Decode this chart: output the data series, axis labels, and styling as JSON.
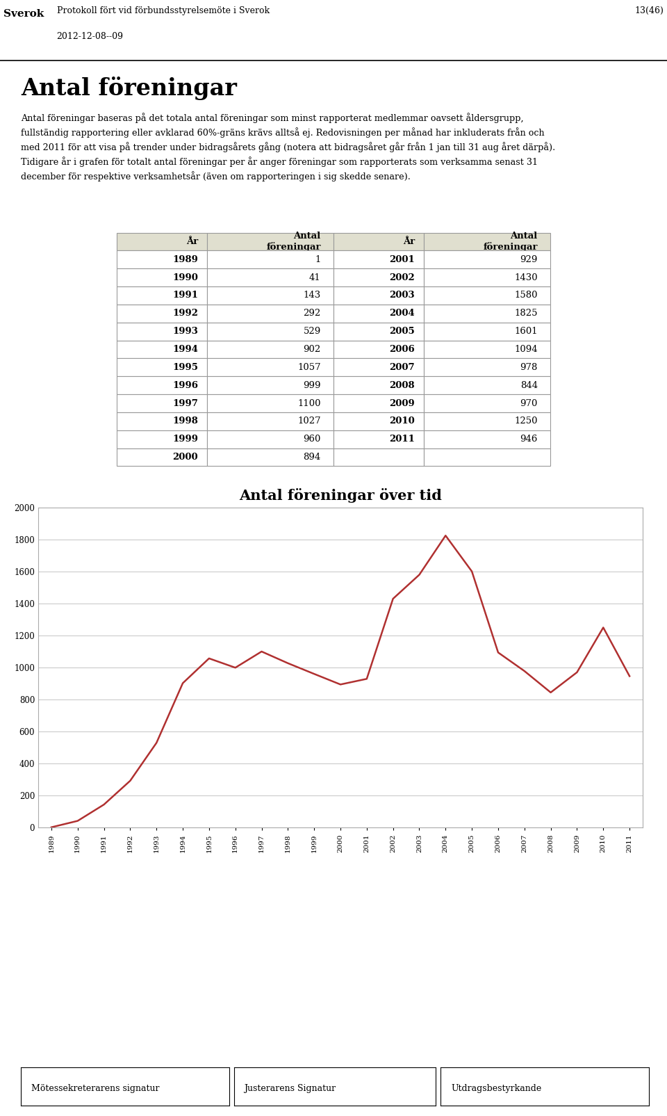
{
  "page_header": "Protokoll fört vid förbundsstyrelsemöte i Sverok",
  "page_number": "13(46)",
  "page_date": "2012-12-08--09",
  "section_title": "Antal föreningar",
  "body_text_line1": "Antal föreningar baseras på det totala antal föreningar som minst rapporterat medlemmar oavsett åldersgrupp,",
  "body_text_line2": "fullständig rapportering eller avklarad 60%-gräns krävs alltså ej. Redovisningen per månad har inkluderats från och",
  "body_text_line3": "med 2011 för att visa på trender under bidragsårets gång (notera att bidragsåret går från 1 jan till 31 aug året därpå).",
  "body_text_line4": "Tidigare år i grafen för totalt antal föreningar per år anger föreningar som rapporterats som verksamma senast 31",
  "body_text_line5": "december för respektive verksamhetsår (även om rapporteringen i sig skedde senare).",
  "table_years_left": [
    1989,
    1990,
    1991,
    1992,
    1993,
    1994,
    1995,
    1996,
    1997,
    1998,
    1999,
    2000
  ],
  "table_values_left": [
    1,
    41,
    143,
    292,
    529,
    902,
    1057,
    999,
    1100,
    1027,
    960,
    894
  ],
  "table_years_right": [
    2001,
    2002,
    2003,
    2004,
    2005,
    2006,
    2007,
    2008,
    2009,
    2010,
    2011,
    ""
  ],
  "table_values_right": [
    929,
    1430,
    1580,
    1825,
    1601,
    1094,
    978,
    844,
    970,
    1250,
    946,
    ""
  ],
  "chart_title": "Antal föreningar över tid",
  "chart_years": [
    1989,
    1990,
    1991,
    1992,
    1993,
    1994,
    1995,
    1996,
    1997,
    1998,
    1999,
    2000,
    2001,
    2002,
    2003,
    2004,
    2005,
    2006,
    2007,
    2008,
    2009,
    2010,
    2011
  ],
  "chart_values": [
    1,
    41,
    143,
    292,
    529,
    902,
    1057,
    999,
    1100,
    1027,
    960,
    894,
    929,
    1430,
    1580,
    1825,
    1601,
    1094,
    978,
    844,
    970,
    1250,
    946
  ],
  "chart_line_color": "#B03030",
  "chart_bg_color": "#FFFFFF",
  "chart_grid_color": "#BBBBBB",
  "chart_border_color": "#999999",
  "ylim": [
    0,
    2000
  ],
  "yticks": [
    0,
    200,
    400,
    600,
    800,
    1000,
    1200,
    1400,
    1600,
    1800,
    2000
  ],
  "table_header_bg": "#E0DFCF",
  "table_row_bg": "#FFFFFF",
  "footer_left": "Mötessekreterarens signatur",
  "footer_center": "Justerarens Signatur",
  "footer_right": "Utdragsbestyrkande",
  "bg_color": "#FFFFFF"
}
